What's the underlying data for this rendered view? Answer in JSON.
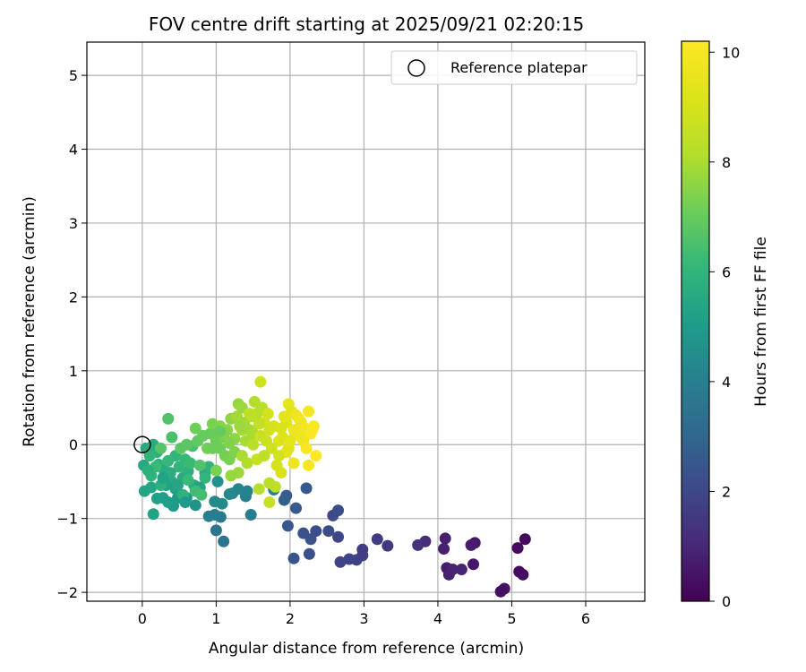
{
  "chart_data": {
    "type": "scatter",
    "title": "FOV centre drift starting at 2025/09/21 02:20:15",
    "xlabel": "Angular distance from reference (arcmin)",
    "ylabel": "Rotation from reference (arcmin)",
    "xlim": [
      -0.75,
      6.8
    ],
    "ylim": [
      -2.12,
      5.45
    ],
    "xticks": [
      0,
      1,
      2,
      3,
      4,
      5,
      6
    ],
    "yticks": [
      -2,
      -1,
      0,
      1,
      2,
      3,
      4,
      5
    ],
    "grid": true,
    "legend": {
      "placement": "top-right",
      "entries": [
        "Reference platepar"
      ]
    },
    "colorbar": {
      "label": "Hours from first FF file",
      "range": [
        0,
        10.2
      ],
      "ticks": [
        0,
        2,
        4,
        6,
        8,
        10
      ],
      "colormap": "viridis"
    },
    "reference_point": {
      "x": 0,
      "y": 0,
      "marker": "open-circle"
    },
    "series": [
      {
        "name": "",
        "points": [
          [
            5.18,
            -1.28,
            0.2
          ],
          [
            5.08,
            -1.4,
            0.3
          ],
          [
            5.1,
            -1.72,
            0.3
          ],
          [
            5.15,
            -1.76,
            0.3
          ],
          [
            4.9,
            -1.95,
            0.5
          ],
          [
            4.85,
            -1.99,
            0.4
          ],
          [
            4.5,
            -1.33,
            0.6
          ],
          [
            4.45,
            -1.36,
            0.7
          ],
          [
            4.48,
            -1.62,
            0.6
          ],
          [
            4.1,
            -1.27,
            0.8
          ],
          [
            4.08,
            -1.41,
            0.8
          ],
          [
            4.12,
            -1.67,
            0.7
          ],
          [
            4.15,
            -1.76,
            0.8
          ],
          [
            4.2,
            -1.69,
            0.9
          ],
          [
            4.32,
            -1.69,
            0.9
          ],
          [
            3.83,
            -1.31,
            1.2
          ],
          [
            3.73,
            -1.36,
            1.3
          ],
          [
            3.32,
            -1.37,
            1.5
          ],
          [
            3.18,
            -1.28,
            1.6
          ],
          [
            2.98,
            -1.42,
            1.7
          ],
          [
            2.98,
            -1.5,
            1.7
          ],
          [
            2.9,
            -1.56,
            1.8
          ],
          [
            2.8,
            -1.55,
            1.9
          ],
          [
            2.68,
            -1.59,
            1.9
          ],
          [
            2.65,
            -1.25,
            2.0
          ],
          [
            2.52,
            -1.17,
            2.1
          ],
          [
            2.58,
            -0.96,
            2.1
          ],
          [
            2.65,
            -0.89,
            2.2
          ],
          [
            2.35,
            -1.17,
            2.2
          ],
          [
            2.28,
            -1.28,
            2.3
          ],
          [
            2.18,
            -1.2,
            2.3
          ],
          [
            2.26,
            -1.48,
            2.3
          ],
          [
            2.05,
            -1.54,
            2.4
          ],
          [
            1.97,
            -1.1,
            2.5
          ],
          [
            2.08,
            -0.86,
            2.6
          ],
          [
            2.22,
            -0.59,
            2.6
          ],
          [
            1.95,
            -0.69,
            2.7
          ],
          [
            1.92,
            -0.75,
            2.8
          ],
          [
            1.1,
            -1.31,
            3.5
          ],
          [
            1.0,
            -1.16,
            3.6
          ],
          [
            1.06,
            -0.98,
            3.7
          ],
          [
            0.98,
            -0.95,
            3.8
          ],
          [
            0.9,
            -0.97,
            3.9
          ],
          [
            1.47,
            -0.95,
            3.9
          ],
          [
            1.4,
            -0.7,
            4.0
          ],
          [
            1.42,
            -0.63,
            4.1
          ],
          [
            1.3,
            -0.6,
            4.2
          ],
          [
            1.22,
            -0.66,
            4.2
          ],
          [
            1.18,
            -0.67,
            4.3
          ],
          [
            1.78,
            -0.61,
            4.0
          ],
          [
            1.08,
            -0.8,
            4.4
          ],
          [
            0.98,
            -0.77,
            4.4
          ],
          [
            1.02,
            -0.5,
            4.6
          ],
          [
            0.72,
            -0.82,
            4.7
          ],
          [
            0.6,
            -0.72,
            4.8
          ],
          [
            0.48,
            -0.72,
            4.9
          ],
          [
            0.42,
            -0.83,
            5.0
          ],
          [
            0.35,
            -0.78,
            5.1
          ],
          [
            0.28,
            -0.72,
            5.1
          ],
          [
            0.2,
            -0.73,
            5.2
          ],
          [
            0.15,
            -0.94,
            5.3
          ],
          [
            0.12,
            -0.58,
            5.4
          ],
          [
            0.03,
            -0.63,
            5.4
          ],
          [
            0.02,
            -0.28,
            5.5
          ],
          [
            0.05,
            -0.05,
            5.6
          ],
          [
            0.15,
            0.0,
            5.7
          ],
          [
            0.2,
            -0.1,
            5.7
          ],
          [
            0.22,
            -0.27,
            5.8
          ],
          [
            0.3,
            -0.35,
            5.6
          ],
          [
            0.4,
            -0.5,
            5.5
          ],
          [
            0.32,
            -0.55,
            5.3
          ],
          [
            0.45,
            -0.6,
            5.2
          ],
          [
            0.55,
            -0.45,
            5.6
          ],
          [
            0.62,
            -0.36,
            5.8
          ],
          [
            0.7,
            -0.55,
            5.5
          ],
          [
            0.78,
            -0.58,
            5.3
          ],
          [
            0.85,
            -0.38,
            5.6
          ],
          [
            0.9,
            -0.3,
            5.9
          ],
          [
            0.45,
            -0.15,
            6.0
          ],
          [
            0.5,
            -0.3,
            6.0
          ],
          [
            0.58,
            -0.2,
            6.1
          ],
          [
            0.65,
            -0.25,
            6.2
          ],
          [
            0.12,
            -0.42,
            5.9
          ],
          [
            0.25,
            -0.55,
            5.8
          ],
          [
            0.35,
            -0.22,
            6.1
          ],
          [
            0.1,
            -0.15,
            6.0
          ],
          [
            0.72,
            -0.63,
            6.3
          ],
          [
            0.8,
            -0.68,
            6.4
          ],
          [
            0.68,
            -0.02,
            6.5
          ],
          [
            0.4,
            0.1,
            6.5
          ],
          [
            0.35,
            0.35,
            6.6
          ],
          [
            0.25,
            -0.05,
            6.7
          ],
          [
            0.52,
            -0.05,
            6.8
          ],
          [
            0.6,
            0.0,
            6.8
          ],
          [
            0.75,
            0.05,
            6.9
          ],
          [
            0.82,
            0.12,
            7.0
          ],
          [
            0.92,
            0.15,
            7.0
          ],
          [
            1.0,
            0.05,
            7.1
          ],
          [
            1.05,
            -0.05,
            7.1
          ],
          [
            1.1,
            0.1,
            7.2
          ],
          [
            1.12,
            -0.15,
            7.2
          ],
          [
            1.0,
            -0.35,
            7.3
          ],
          [
            1.18,
            -0.2,
            7.3
          ],
          [
            1.25,
            -0.1,
            7.4
          ],
          [
            0.88,
            -0.05,
            7.2
          ],
          [
            1.15,
            0.2,
            7.5
          ],
          [
            1.2,
            0.35,
            7.6
          ],
          [
            1.05,
            0.25,
            7.5
          ],
          [
            1.3,
            0.55,
            7.7
          ],
          [
            1.35,
            0.5,
            7.8
          ],
          [
            1.28,
            0.38,
            7.9
          ],
          [
            1.38,
            0.3,
            7.9
          ],
          [
            1.45,
            0.2,
            7.9
          ],
          [
            1.5,
            0.15,
            8.0
          ],
          [
            1.4,
            0.05,
            8.0
          ],
          [
            1.52,
            0.58,
            8.1
          ],
          [
            1.62,
            0.5,
            8.2
          ],
          [
            1.55,
            0.42,
            8.2
          ],
          [
            1.35,
            -0.15,
            8.0
          ],
          [
            1.42,
            -0.25,
            8.1
          ],
          [
            1.3,
            -0.38,
            7.8
          ],
          [
            1.2,
            -0.42,
            7.7
          ],
          [
            1.58,
            -0.6,
            8.2
          ],
          [
            1.72,
            -0.52,
            8.3
          ],
          [
            1.8,
            -0.57,
            8.4
          ],
          [
            1.72,
            -0.78,
            8.6
          ],
          [
            1.6,
            0.85,
            8.8
          ],
          [
            1.55,
            -0.2,
            8.6
          ],
          [
            1.68,
            0.05,
            8.7
          ],
          [
            1.72,
            0.2,
            8.9
          ],
          [
            1.75,
            -0.05,
            8.8
          ],
          [
            1.78,
            0.25,
            9.0
          ],
          [
            1.82,
            -0.28,
            9.0
          ],
          [
            1.88,
            -0.38,
            9.1
          ],
          [
            1.9,
            0.1,
            9.2
          ],
          [
            1.95,
            0.3,
            9.3
          ],
          [
            1.98,
            0.55,
            9.5
          ],
          [
            2.02,
            0.45,
            9.4
          ],
          [
            2.05,
            0.2,
            9.6
          ],
          [
            2.1,
            0.15,
            9.6
          ],
          [
            2.08,
            0.4,
            9.7
          ],
          [
            2.15,
            0.3,
            9.8
          ],
          [
            2.18,
            0.05,
            9.8
          ],
          [
            2.2,
            0.22,
            9.9
          ],
          [
            2.25,
            0.45,
            9.9
          ],
          [
            2.28,
            0.15,
            10.0
          ],
          [
            2.22,
            -0.05,
            10.0
          ],
          [
            2.3,
            0.2,
            10.1
          ],
          [
            2.35,
            -0.15,
            10.2
          ],
          [
            2.32,
            0.25,
            10.1
          ],
          [
            2.05,
            -0.25,
            9.7
          ],
          [
            2.25,
            -0.28,
            9.9
          ],
          [
            1.95,
            -0.1,
            9.5
          ],
          [
            1.85,
            0.05,
            9.2
          ],
          [
            1.65,
            0.3,
            8.9
          ],
          [
            1.6,
            0.12,
            8.7
          ],
          [
            1.45,
            0.42,
            8.5
          ],
          [
            1.5,
            0.0,
            8.3
          ],
          [
            1.1,
            0.15,
            7.4
          ],
          [
            0.95,
            -0.05,
            7.1
          ],
          [
            0.78,
            -0.28,
            6.6
          ],
          [
            0.62,
            -0.48,
            6.2
          ],
          [
            0.85,
            -0.45,
            6.0
          ],
          [
            0.55,
            -0.68,
            5.9
          ],
          [
            0.38,
            -0.38,
            5.7
          ],
          [
            0.48,
            -0.55,
            5.4
          ],
          [
            0.28,
            -0.45,
            5.3
          ],
          [
            0.58,
            -0.78,
            5.0
          ],
          [
            0.18,
            -0.3,
            6.2
          ],
          [
            0.08,
            -0.35,
            5.8
          ],
          [
            1.25,
            0.08,
            7.6
          ],
          [
            1.35,
            0.2,
            7.9
          ],
          [
            1.48,
            0.38,
            8.3
          ],
          [
            1.7,
            0.42,
            8.9
          ],
          [
            1.92,
            0.38,
            9.4
          ],
          [
            2.12,
            0.35,
            9.8
          ],
          [
            1.88,
            0.22,
            9.1
          ],
          [
            1.58,
            0.28,
            8.5
          ],
          [
            1.32,
            0.25,
            7.8
          ],
          [
            1.18,
            0.02,
            7.4
          ],
          [
            0.95,
            0.28,
            7.3
          ],
          [
            0.72,
            0.22,
            7.1
          ],
          [
            1.05,
            0.18,
            7.0
          ],
          [
            1.65,
            -0.15,
            8.4
          ],
          [
            1.85,
            -0.15,
            8.9
          ],
          [
            1.98,
            -0.05,
            9.3
          ],
          [
            2.15,
            0.1,
            9.7
          ],
          [
            2.0,
            0.05,
            9.4
          ]
        ]
      }
    ]
  }
}
